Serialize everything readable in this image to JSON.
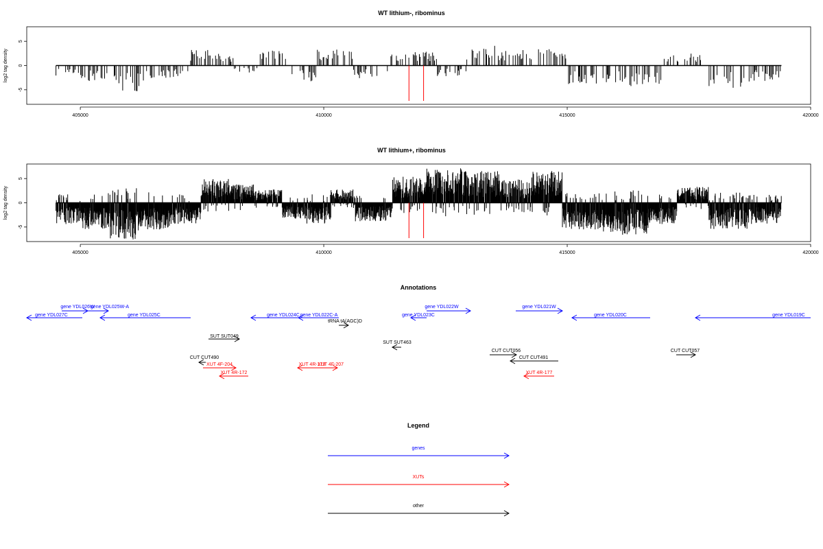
{
  "chart_data": [
    {
      "type": "bar",
      "title": "WT lithium-, ribominus",
      "xlabel": "",
      "ylabel": "log2 tag density",
      "xlim": [
        403900,
        420000
      ],
      "ylim": [
        -8,
        8
      ],
      "xticks": [
        405000,
        410000,
        415000,
        420000
      ],
      "yticks": [
        -5,
        0,
        5
      ],
      "data_range": [
        404500,
        419400
      ],
      "markers": [
        411750,
        412050
      ],
      "marker_color": "#ff0000",
      "bar_color": "#000000",
      "series": [
        {
          "x": [
            404600,
            405200,
            405900,
            406700,
            407800,
            407900,
            408400,
            408950,
            409250,
            409350,
            410350,
            410850,
            411850,
            412000,
            412650,
            413200,
            414000,
            414500,
            415500,
            416600,
            417350,
            418200,
            419200
          ],
          "y": [
            -2,
            -3,
            -5,
            -2.5,
            3,
            2,
            -1.5,
            3,
            3.5,
            -3,
            3.5,
            -2.5,
            2.5,
            3,
            -2,
            3.8,
            3,
            3.2,
            -3.5,
            -4,
            2.5,
            -4.5,
            -3
          ]
        }
      ]
    },
    {
      "type": "bar",
      "title": "WT lithium+, ribominus",
      "xlabel": "",
      "ylabel": "log2 tag density",
      "xlim": [
        403900,
        420000
      ],
      "ylim": [
        -8,
        8
      ],
      "xticks": [
        405000,
        410000,
        415000,
        420000
      ],
      "yticks": [
        -5,
        0,
        5
      ],
      "data_range": [
        404500,
        419400
      ],
      "markers": [
        411750,
        412050
      ],
      "marker_color": "#ff0000",
      "bar_color": "#000000",
      "series": [
        {
          "x": [
            404700,
            405300,
            405900,
            406500,
            407200,
            407800,
            408300,
            408900,
            409400,
            409900,
            410400,
            410900,
            411900,
            412300,
            412800,
            413300,
            413900,
            414600,
            415200,
            415800,
            416400,
            417000,
            417500,
            418300,
            419100
          ],
          "y": [
            -4,
            -5,
            -7,
            -5,
            -4,
            4.5,
            3.5,
            2.5,
            -3,
            -4,
            2.5,
            -3.5,
            5,
            6.5,
            6.5,
            6,
            4.5,
            6,
            -5,
            -5.5,
            -6,
            -4,
            3,
            -5,
            -4
          ]
        }
      ]
    }
  ],
  "annotations": {
    "title": "Annotations",
    "items": [
      {
        "label": "gene YDL027C",
        "color": "#0000ff",
        "dir": "left"
      },
      {
        "label": "gene YDL026W",
        "color": "#0000ff",
        "dir": "right"
      },
      {
        "label": "gene YDL025W-A",
        "color": "#0000ff",
        "dir": "right"
      },
      {
        "label": "gene YDL025C",
        "color": "#0000ff",
        "dir": "left"
      },
      {
        "label": "gene YDL024C",
        "color": "#0000ff",
        "dir": "left"
      },
      {
        "label": "gene YDL022C-A",
        "color": "#0000ff",
        "dir": "left"
      },
      {
        "label": "gene YDL022W",
        "color": "#0000ff",
        "dir": "right"
      },
      {
        "label": "gene YDL023C",
        "color": "#0000ff",
        "dir": "left"
      },
      {
        "label": "gene YDL021W",
        "color": "#0000ff",
        "dir": "right"
      },
      {
        "label": "gene YDL020C",
        "color": "#0000ff",
        "dir": "left"
      },
      {
        "label": "gene YDL019C",
        "color": "#0000ff",
        "dir": "left"
      },
      {
        "label": "tRNA tA(AGC)D",
        "color": "#000000",
        "dir": "right"
      },
      {
        "label": "SUT SUT049",
        "color": "#000000",
        "dir": "right"
      },
      {
        "label": "SUT SUT463",
        "color": "#000000",
        "dir": "left"
      },
      {
        "label": "CUT CUT490",
        "color": "#000000",
        "dir": "left"
      },
      {
        "label": "XUT 4F-204",
        "color": "#ff0000",
        "dir": "right"
      },
      {
        "label": "XUT 4R-172",
        "color": "#ff0000",
        "dir": "left"
      },
      {
        "label": "XUT 4R-173",
        "color": "#ff0000",
        "dir": "left"
      },
      {
        "label": "XUT 4F-207",
        "color": "#ff0000",
        "dir": "right"
      },
      {
        "label": "CUT CUT056",
        "color": "#000000",
        "dir": "right"
      },
      {
        "label": "CUT CUT491",
        "color": "#000000",
        "dir": "left"
      },
      {
        "label": "XUT 4R-177",
        "color": "#ff0000",
        "dir": "left"
      },
      {
        "label": "CUT CUT057",
        "color": "#000000",
        "dir": "right"
      }
    ]
  },
  "legend": {
    "title": "Legend",
    "items": [
      {
        "label": "genes",
        "color": "#0000ff"
      },
      {
        "label": "XUTs",
        "color": "#ff0000"
      },
      {
        "label": "other",
        "color": "#000000"
      }
    ]
  }
}
